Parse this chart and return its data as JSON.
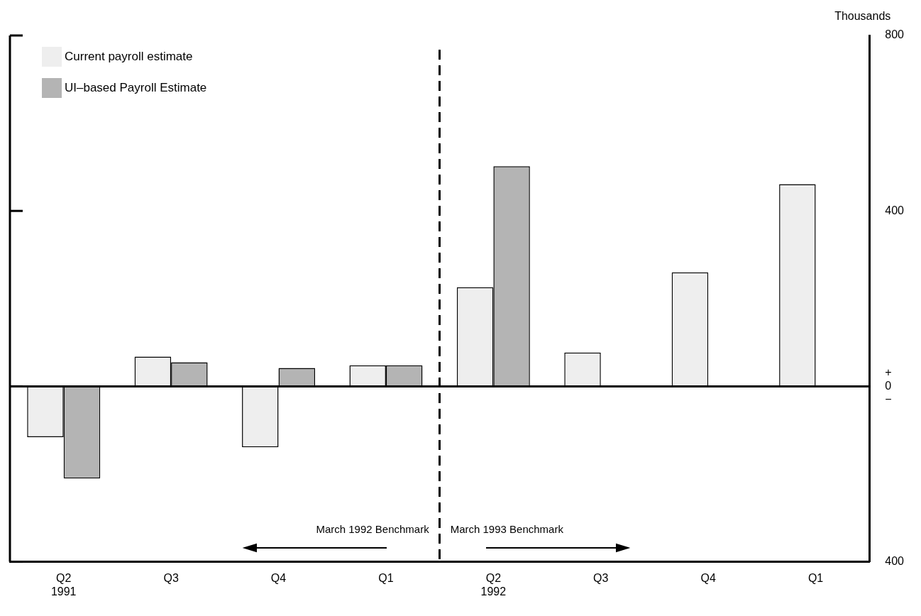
{
  "chart_data": {
    "type": "bar",
    "ylabel": "Thousands",
    "categories": [
      "Q2\n1991",
      "Q3",
      "Q4",
      "Q1",
      "Q2\n1992",
      "Q3",
      "Q4",
      "Q1"
    ],
    "series": [
      {
        "name": "Current payroll estimate",
        "color": "#eeeeee",
        "values": [
          -116,
          68,
          -139,
          48,
          226,
          77,
          260,
          461
        ]
      },
      {
        "name": "UI–based Payroll Estimate",
        "color": "#b4b4b4",
        "values": [
          -210,
          55,
          42,
          48,
          502,
          null,
          null,
          null
        ]
      }
    ],
    "ylim": [
      -400,
      800
    ],
    "yticks": [
      {
        "value": -400,
        "label": "400"
      },
      {
        "value": 0,
        "label": "+ 0 −"
      },
      400,
      800
    ],
    "annotations": [
      "March 1992 Benchmark",
      "March 1993 Benchmark"
    ],
    "legend": "top left"
  }
}
